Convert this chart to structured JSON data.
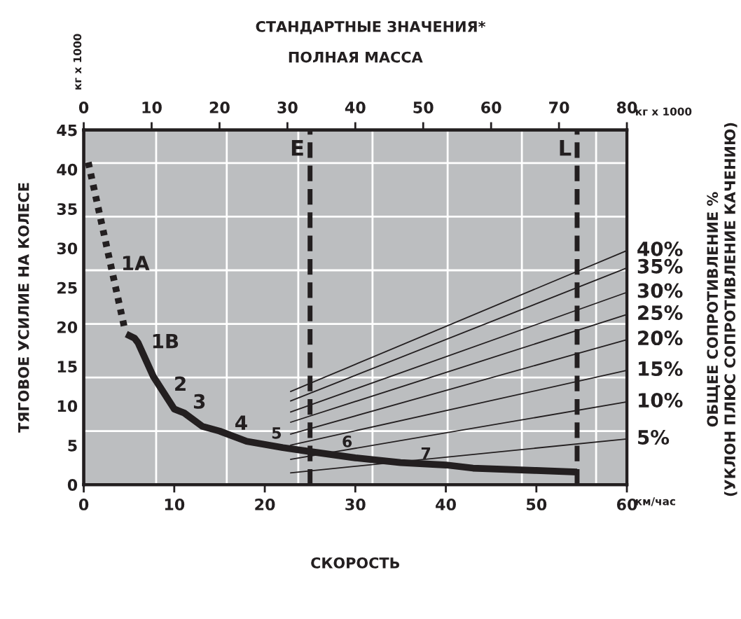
{
  "chart_data": {
    "type": "line",
    "title": "СТАНДАРТНЫЕ ЗНАЧЕНИЯ*",
    "xlabel": "СКОРОСТЬ",
    "ylabel": "ТЯГОВОЕ УСИЛИЕ НА КОЛЕСЕ",
    "x2label": "ПОЛНАЯ МАССА",
    "y2label": "ОБЩЕЕ СОПРОТИВЛЕНИЕ %\n(УКЛОН ПЛЮС СОПРОТИВЛЕНИЕ КАЧЕНИЮ)",
    "xlim": [
      0,
      60
    ],
    "xticks": [
      0,
      10,
      20,
      30,
      40,
      50,
      60
    ],
    "x2lim": [
      0,
      80
    ],
    "x2ticks": [
      0,
      10,
      20,
      30,
      40,
      50,
      60,
      70,
      80
    ],
    "ylim": [
      0,
      45
    ],
    "yticks": [
      0,
      5,
      10,
      15,
      20,
      25,
      30,
      35,
      40,
      45
    ],
    "grid": false,
    "legend": false,
    "marker": "none",
    "series": [
      {
        "color": "#231f20",
        "line_style": "dotted",
        "x": [
          0.5,
          4.5
        ],
        "values": [
          40.9,
          19.9
        ]
      },
      {
        "color": "#231f20",
        "line_style": "solid",
        "x": [
          4.7,
          5.6,
          6.0,
          7.7,
          10.0,
          11.1,
          13.1,
          15,
          18,
          22,
          25,
          30,
          35,
          40,
          43,
          50,
          54.5
        ],
        "values": [
          19.1,
          18.6,
          18.0,
          13.7,
          9.6,
          9.1,
          7.4,
          6.8,
          5.5,
          4.7,
          4.2,
          3.4,
          2.8,
          2.5,
          2.1,
          1.8,
          1.6
        ]
      },
      {
        "color": "#231f20",
        "line_style": "solid",
        "x": [
          22.8,
          60
        ],
        "values": [
          11.8,
          29.7
        ]
      },
      {
        "color": "#231f20",
        "line_style": "solid",
        "x": [
          22.8,
          60
        ],
        "values": [
          10.6,
          27.5
        ]
      },
      {
        "color": "#231f20",
        "line_style": "solid",
        "x": [
          22.8,
          60
        ],
        "values": [
          9.2,
          24.4
        ]
      },
      {
        "color": "#231f20",
        "line_style": "solid",
        "x": [
          22.8,
          60
        ],
        "values": [
          7.9,
          21.6
        ]
      },
      {
        "color": "#231f20",
        "line_style": "solid",
        "x": [
          22.8,
          60
        ],
        "values": [
          6.4,
          18.4
        ]
      },
      {
        "color": "#231f20",
        "line_style": "solid",
        "x": [
          22.8,
          60
        ],
        "values": [
          5.0,
          14.5
        ]
      },
      {
        "color": "#231f20",
        "line_style": "solid",
        "x": [
          22.8,
          60
        ],
        "values": [
          3.2,
          10.5
        ]
      },
      {
        "color": "#231f20",
        "line_style": "solid",
        "x": [
          22.8,
          60
        ],
        "values": [
          1.5,
          5.8
        ]
      }
    ],
    "ref_lines": [
      {
        "axis": "x",
        "value": 8,
        "color": "#ffffff",
        "line_style": "solid"
      },
      {
        "axis": "x",
        "value": 15.8,
        "color": "#ffffff",
        "line_style": "solid"
      },
      {
        "axis": "x",
        "value": 23.7,
        "color": "#ffffff",
        "line_style": "solid"
      },
      {
        "axis": "x",
        "value": 31.9,
        "color": "#ffffff",
        "line_style": "solid"
      },
      {
        "axis": "x",
        "value": 40.2,
        "color": "#ffffff",
        "line_style": "solid"
      },
      {
        "axis": "x",
        "value": 48.4,
        "color": "#ffffff",
        "line_style": "solid"
      },
      {
        "axis": "x",
        "value": 56.6,
        "color": "#ffffff",
        "line_style": "solid"
      },
      {
        "axis": "y",
        "value": 6.8,
        "color": "#ffffff",
        "line_style": "solid"
      },
      {
        "axis": "y",
        "value": 13.6,
        "color": "#ffffff",
        "line_style": "solid"
      },
      {
        "axis": "y",
        "value": 20.4,
        "color": "#ffffff",
        "line_style": "solid"
      },
      {
        "axis": "y",
        "value": 27.2,
        "color": "#ffffff",
        "line_style": "solid"
      },
      {
        "axis": "y",
        "value": 34,
        "color": "#ffffff",
        "line_style": "solid"
      },
      {
        "axis": "y",
        "value": 40.8,
        "color": "#ffffff",
        "line_style": "solid"
      },
      {
        "axis": "x",
        "value": 25,
        "label": "E",
        "color": "#231f20",
        "line_style": "dashed"
      },
      {
        "axis": "x",
        "value": 54.5,
        "label": "L",
        "color": "#231f20",
        "line_style": "dashed"
      }
    ],
    "annotations": [
      "кг x 1000",
      "км/час",
      "кг x 1000",
      "1A",
      "1B",
      "2",
      "3",
      "4",
      "5",
      "6",
      "7",
      "40%",
      "35%",
      "30%",
      "25%",
      "20%",
      "15%",
      "10%",
      "5%"
    ]
  }
}
